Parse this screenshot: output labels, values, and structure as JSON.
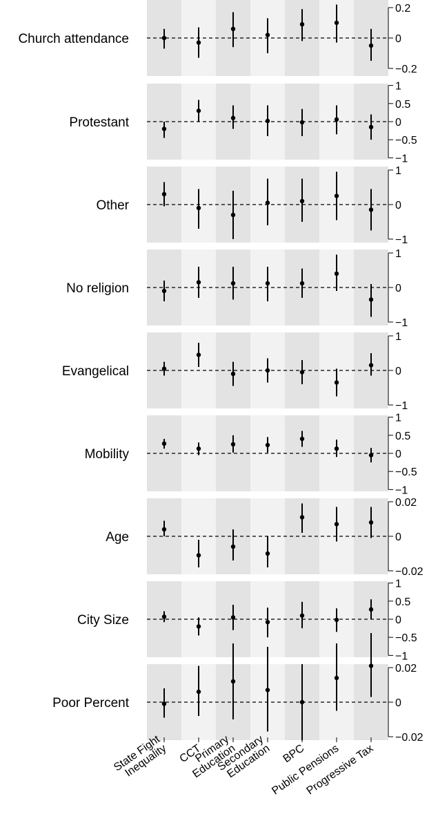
{
  "chart_data": {
    "type": "coefficient-plot",
    "outcomes": [
      "State Fight Inequality",
      "CCT",
      "Primary Education",
      "Secondary Education",
      "BPC",
      "Public Pensions",
      "Progressive Tax"
    ],
    "x_tick_labels": [
      [
        "State Fight",
        "Inequality"
      ],
      [
        "CCT"
      ],
      [
        "Primary",
        "Education"
      ],
      [
        "Secondary",
        "Education"
      ],
      [
        "BPC"
      ],
      [
        "Public Pensions"
      ],
      [
        "Progressive Tax"
      ]
    ],
    "panels": [
      {
        "label": "Church attendance",
        "ylim": [
          -0.25,
          0.25
        ],
        "ticks": [
          -0.2,
          0,
          0.2
        ],
        "tick_labels": [
          "−0.2",
          "0",
          "0.2"
        ],
        "estimates": [
          0.0,
          -0.03,
          0.06,
          0.02,
          0.09,
          0.1,
          -0.05
        ],
        "lower": [
          -0.07,
          -0.13,
          -0.06,
          -0.1,
          -0.02,
          -0.03,
          -0.15
        ],
        "upper": [
          0.06,
          0.07,
          0.17,
          0.13,
          0.19,
          0.22,
          0.06
        ]
      },
      {
        "label": "Protestant",
        "ylim": [
          -1.05,
          1.05
        ],
        "ticks": [
          -1,
          -0.5,
          0,
          0.5,
          1
        ],
        "tick_labels": [
          "−1",
          "−0.5",
          "0",
          "0.5",
          "1"
        ],
        "estimates": [
          -0.2,
          0.3,
          0.1,
          0.02,
          -0.02,
          0.06,
          -0.15
        ],
        "lower": [
          -0.45,
          0.0,
          -0.2,
          -0.4,
          -0.4,
          -0.35,
          -0.5
        ],
        "upper": [
          0.0,
          0.6,
          0.45,
          0.45,
          0.35,
          0.45,
          0.2
        ]
      },
      {
        "label": "Other",
        "ylim": [
          -1.1,
          1.1
        ],
        "ticks": [
          -1,
          0,
          1
        ],
        "tick_labels": [
          "−1",
          "0",
          "1"
        ],
        "estimates": [
          0.3,
          -0.1,
          -0.3,
          0.05,
          0.1,
          0.25,
          -0.15
        ],
        "lower": [
          -0.05,
          -0.7,
          -1.0,
          -0.6,
          -0.5,
          -0.45,
          -0.75
        ],
        "upper": [
          0.65,
          0.45,
          0.4,
          0.75,
          0.75,
          0.95,
          0.45
        ]
      },
      {
        "label": "No religion",
        "ylim": [
          -1.1,
          1.1
        ],
        "ticks": [
          -1,
          0,
          1
        ],
        "tick_labels": [
          "−1",
          "0",
          "1"
        ],
        "estimates": [
          -0.1,
          0.15,
          0.12,
          0.12,
          0.12,
          0.4,
          -0.35
        ],
        "lower": [
          -0.4,
          -0.3,
          -0.35,
          -0.4,
          -0.3,
          -0.1,
          -0.85
        ],
        "upper": [
          0.2,
          0.6,
          0.6,
          0.6,
          0.55,
          0.95,
          0.1
        ]
      },
      {
        "label": "Evangelical",
        "ylim": [
          -1.1,
          1.1
        ],
        "ticks": [
          -1,
          0,
          1
        ],
        "tick_labels": [
          "−1",
          "0",
          "1"
        ],
        "estimates": [
          0.05,
          0.45,
          -0.1,
          0.0,
          -0.05,
          -0.35,
          0.15
        ],
        "lower": [
          -0.15,
          0.1,
          -0.45,
          -0.35,
          -0.4,
          -0.75,
          -0.15
        ],
        "upper": [
          0.25,
          0.8,
          0.25,
          0.35,
          0.3,
          0.05,
          0.5
        ]
      },
      {
        "label": "Mobility",
        "ylim": [
          -1.05,
          1.05
        ],
        "ticks": [
          -1,
          -0.5,
          0,
          0.5,
          1
        ],
        "tick_labels": [
          "−1",
          "−0.5",
          "0",
          "0.5",
          "1"
        ],
        "estimates": [
          0.27,
          0.13,
          0.25,
          0.23,
          0.4,
          0.13,
          -0.05
        ],
        "lower": [
          0.13,
          -0.05,
          0.02,
          0.02,
          0.18,
          -0.1,
          -0.25
        ],
        "upper": [
          0.4,
          0.3,
          0.5,
          0.45,
          0.62,
          0.38,
          0.15
        ]
      },
      {
        "label": "Age",
        "ylim": [
          -0.022,
          0.022
        ],
        "ticks": [
          -0.02,
          0,
          0.02
        ],
        "tick_labels": [
          "−0.02",
          "0",
          "0.02"
        ],
        "estimates": [
          0.004,
          -0.011,
          -0.006,
          -0.01,
          0.011,
          0.007,
          0.008
        ],
        "lower": [
          0.0,
          -0.018,
          -0.014,
          -0.018,
          0.002,
          -0.003,
          -0.001
        ],
        "upper": [
          0.009,
          -0.002,
          0.004,
          0.0,
          0.019,
          0.017,
          0.017
        ]
      },
      {
        "label": "City Size",
        "ylim": [
          -1.05,
          1.05
        ],
        "ticks": [
          -1,
          -0.5,
          0,
          0.5,
          1
        ],
        "tick_labels": [
          "−1",
          "−0.5",
          "0",
          "0.5",
          "1"
        ],
        "estimates": [
          0.07,
          -0.2,
          0.05,
          -0.08,
          0.1,
          -0.02,
          0.27
        ],
        "lower": [
          -0.08,
          -0.45,
          -0.3,
          -0.5,
          -0.25,
          -0.35,
          0.0
        ],
        "upper": [
          0.22,
          0.05,
          0.4,
          0.32,
          0.48,
          0.3,
          0.55
        ]
      },
      {
        "label": "Poor Percent",
        "ylim": [
          -0.022,
          0.022
        ],
        "ticks": [
          -0.02,
          0,
          0.02
        ],
        "tick_labels": [
          "−0.02",
          "0",
          "0.02"
        ],
        "estimates": [
          -0.001,
          0.006,
          0.012,
          0.007,
          0.0,
          0.014,
          0.021
        ],
        "lower": [
          -0.009,
          -0.008,
          -0.01,
          -0.017,
          -0.022,
          -0.005,
          0.003
        ],
        "upper": [
          0.008,
          0.021,
          0.034,
          0.032,
          0.022,
          0.034,
          0.04
        ]
      }
    ]
  },
  "colors": {
    "band_dark": "#e3e3e3",
    "band_light": "#f2f2f2",
    "point": "#000000",
    "reference_line": "#000000"
  }
}
